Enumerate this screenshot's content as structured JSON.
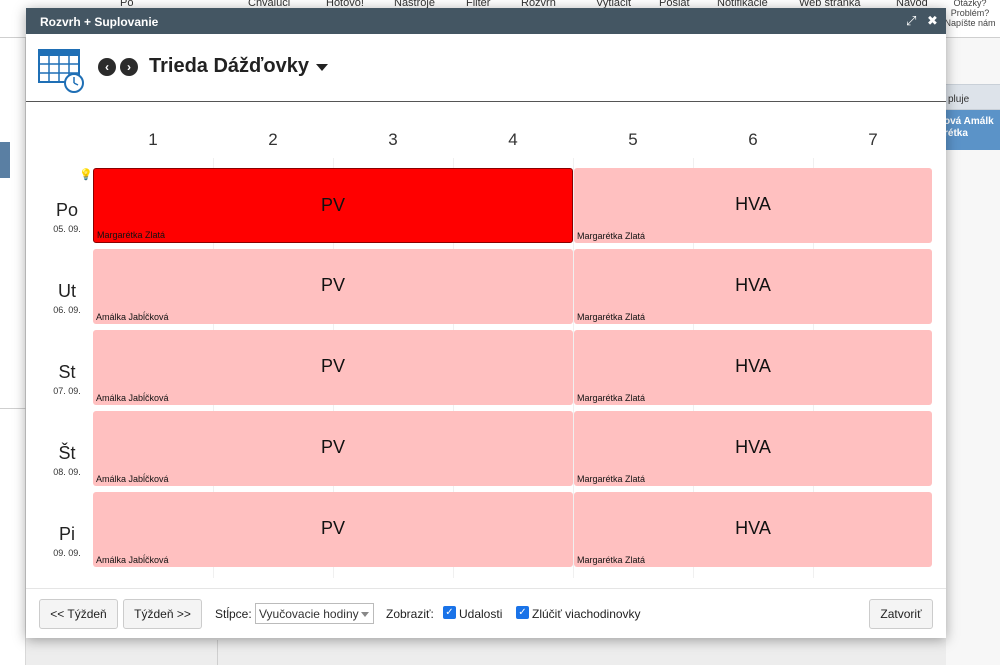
{
  "background": {
    "toolbar_items": [
      "Po",
      "Chválúci",
      "Hotovo!",
      "Nástroje",
      "Filter",
      "Rozvrh",
      "Vytlačiť",
      "Poslať",
      "Notifikácie",
      "Web stránka",
      "Návod"
    ],
    "help_text": "Otázky? Problém? Napíšte nám",
    "right_header": "pluje",
    "right_highlight_line1": "ová Amálk",
    "right_highlight_line2": "rétka"
  },
  "modal": {
    "title": "Rozvrh + Suplovanie",
    "expand_icon": "expand-icon",
    "close_icon": "close-icon"
  },
  "header": {
    "class_title": "Trieda Dážďovky",
    "calendar_icon": "calendar-clock-icon"
  },
  "columns": [
    "1",
    "2",
    "3",
    "4",
    "5",
    "6",
    "7"
  ],
  "days": [
    {
      "name": "Po",
      "date": "05. 09."
    },
    {
      "name": "Ut",
      "date": "06. 09."
    },
    {
      "name": "St",
      "date": "07. 09."
    },
    {
      "name": "Št",
      "date": "08. 09."
    },
    {
      "name": "Pi",
      "date": "09. 09."
    }
  ],
  "lessons": [
    {
      "subject": "PV",
      "teacher": "Margarétka Zlatá"
    },
    {
      "subject": "HVA",
      "teacher": "Margarétka Zlatá"
    },
    {
      "subject": "PV",
      "teacher": "Amálka Jabĺčková"
    },
    {
      "subject": "HVA",
      "teacher": "Margarétka Zlatá"
    },
    {
      "subject": "PV",
      "teacher": "Amálka Jabĺčková"
    },
    {
      "subject": "HVA",
      "teacher": "Margarétka Zlatá"
    },
    {
      "subject": "PV",
      "teacher": "Amálka Jabĺčková"
    },
    {
      "subject": "HVA",
      "teacher": "Margarétka Zlatá"
    },
    {
      "subject": "PV",
      "teacher": "Amálka Jabĺčková"
    },
    {
      "subject": "HVA",
      "teacher": "Margarétka Zlatá"
    }
  ],
  "colors": {
    "lesson_bg": "#ffc0c0",
    "lesson_active": "#ff0000",
    "titlebar": "#445663"
  },
  "footer": {
    "prev_week": "<< Týždeň",
    "next_week": "Týždeň >>",
    "columns_label": "Stĺpce:",
    "columns_value": "Vyučovacie hodiny",
    "show_label": "Zobraziť:",
    "events_label": "Udalosti",
    "merge_label": "Zlúčiť viachodinovky",
    "close_button": "Zatvoriť"
  }
}
